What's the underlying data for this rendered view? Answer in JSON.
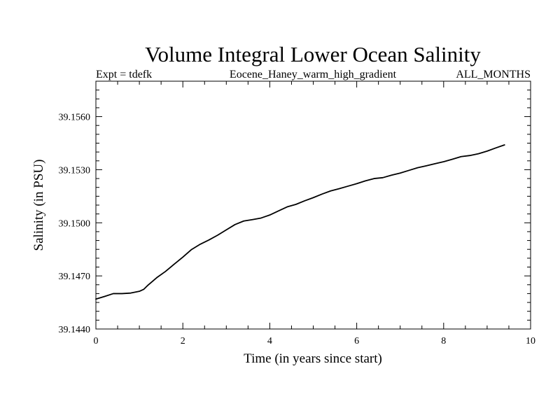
{
  "chart_data": {
    "type": "line",
    "title": "Volume Integral Lower Ocean Salinity",
    "subtitle_left": "Expt = tdefk",
    "subtitle_center": "Eocene_Haney_warm_high_gradient",
    "subtitle_right": "ALL_MONTHS",
    "xlabel": "Time (in years since start)",
    "ylabel": "Salinity (in PSU)",
    "xlim": [
      0,
      10
    ],
    "ylim": [
      39.144,
      39.158
    ],
    "xticks": [
      0,
      2,
      4,
      6,
      8,
      10
    ],
    "xtick_labels": [
      "0",
      "2",
      "4",
      "6",
      "8",
      "10"
    ],
    "yticks": [
      39.144,
      39.147,
      39.15,
      39.153,
      39.156
    ],
    "ytick_labels": [
      "39.1440",
      "39.1470",
      "39.1500",
      "39.1530",
      "39.1560"
    ],
    "grid": false,
    "line_color": "#000000",
    "series": [
      {
        "x": [
          0.0,
          0.2,
          0.4,
          0.6,
          0.8,
          1.0,
          1.1,
          1.2,
          1.4,
          1.6,
          1.8,
          2.0,
          2.2,
          2.4,
          2.6,
          2.8,
          3.0,
          3.2,
          3.4,
          3.6,
          3.8,
          4.0,
          4.2,
          4.4,
          4.6,
          4.8,
          5.0,
          5.2,
          5.4,
          5.6,
          5.8,
          6.0,
          6.2,
          6.4,
          6.6,
          6.8,
          7.0,
          7.2,
          7.4,
          7.6,
          7.8,
          8.0,
          8.2,
          8.4,
          8.6,
          8.8,
          9.0,
          9.2,
          9.4
        ],
        "y": [
          39.14569,
          39.14584,
          39.146,
          39.146,
          39.14603,
          39.14613,
          39.14624,
          39.14648,
          39.1469,
          39.14725,
          39.14766,
          39.14806,
          39.14849,
          39.14879,
          39.14903,
          39.1493,
          39.1496,
          39.1499,
          39.1501,
          39.15018,
          39.15027,
          39.15044,
          39.15067,
          39.1509,
          39.15104,
          39.15124,
          39.15142,
          39.15162,
          39.1518,
          39.15193,
          39.15207,
          39.15221,
          39.15237,
          39.1525,
          39.15255,
          39.15269,
          39.15281,
          39.15296,
          39.15311,
          39.15322,
          39.15334,
          39.15345,
          39.15359,
          39.15374,
          39.1538,
          39.1539,
          39.15405,
          39.15423,
          39.1544
        ]
      }
    ]
  }
}
